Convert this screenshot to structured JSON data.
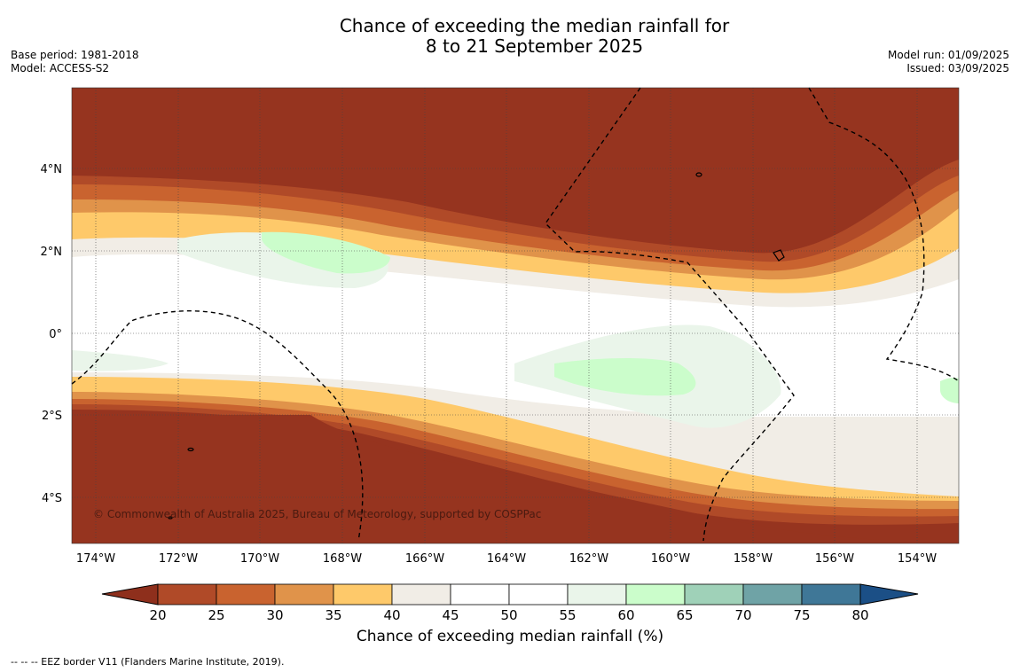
{
  "title": {
    "line1": "Chance of exceeding the median rainfall for",
    "line2": "8 to 21 September 2025"
  },
  "meta_left": {
    "base_period": "Base period: 1981-2018",
    "model": "Model: ACCESS-S2"
  },
  "meta_right": {
    "model_run": "Model run: 01/09/2025",
    "issued": "Issued: 03/09/2025"
  },
  "copyright": "© Commonwealth of Australia 2025, Bureau of Meteorology, supported by COSPPac",
  "lat_labels": [
    "4°N",
    "2°N",
    "0°",
    "2°S",
    "4°S"
  ],
  "lon_labels": [
    "174°W",
    "172°W",
    "170°W",
    "168°W",
    "166°W",
    "164°W",
    "162°W",
    "160°W",
    "158°W",
    "156°W",
    "154°W"
  ],
  "colorbar": {
    "title": "Chance of exceeding median rainfall (%)",
    "ticks": [
      "20",
      "25",
      "30",
      "35",
      "40",
      "45",
      "50",
      "55",
      "60",
      "65",
      "70",
      "75",
      "80"
    ],
    "under_color": "#8e2f1c",
    "over_color": "#1b4f86",
    "colors": [
      "#b04a28",
      "#c9632f",
      "#e0934a",
      "#fec96a",
      "#f1ede6",
      "#ffffff",
      "#ffffff",
      "#eaf5ea",
      "#cbfdcb",
      "#9fd1b8",
      "#6fa3a6",
      "#3f7797"
    ]
  },
  "palette": {
    "lt20": "#96341f",
    "p20": "#b04a28",
    "p25": "#c9632f",
    "p30": "#e0934a",
    "p35": "#fec96a",
    "p40": "#f1ede6",
    "p45": "#ffffff",
    "p55": "#eaf5ea",
    "p60": "#cbfdcb"
  },
  "footer": "--  --  -- EEZ border V11 (Flanders Marine Institute, 2019)."
}
